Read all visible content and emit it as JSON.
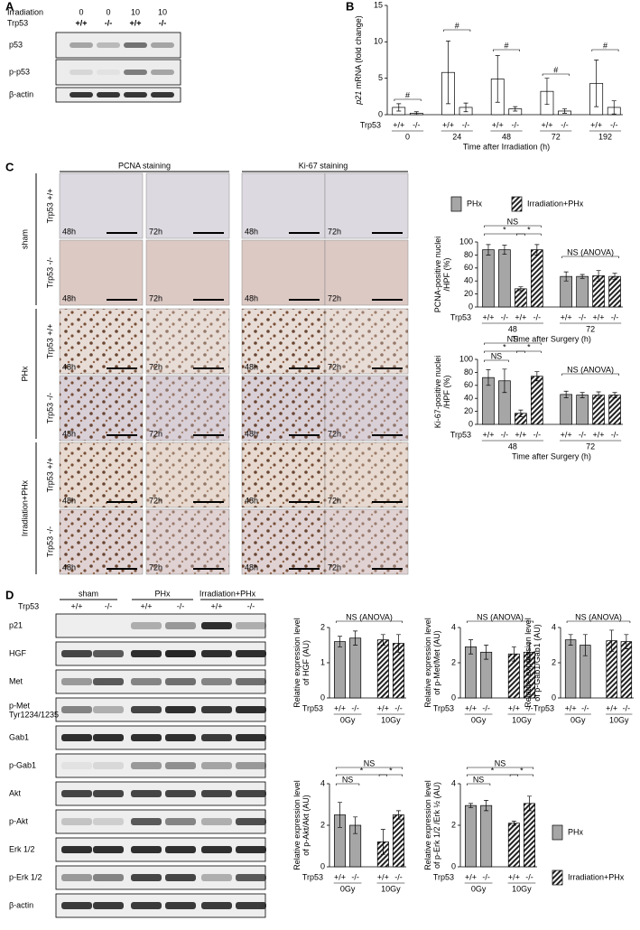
{
  "panel_labels": [
    "A",
    "B",
    "C",
    "D"
  ],
  "blot_a": {
    "header_labels": [
      "Irradiation",
      "Trp53"
    ],
    "irradiation": [
      "0",
      "0",
      "10",
      "10"
    ],
    "genotypes": [
      "+/+",
      "-/-",
      "+/+",
      "-/-"
    ],
    "rows": [
      "p53",
      "p-p53",
      "β-actin"
    ]
  },
  "micrographs": {
    "stains": [
      "PCNA staining",
      "Ki-67 staining"
    ],
    "groups": [
      "sham",
      "PHx",
      "Irradiation+PHx"
    ],
    "genotypes": [
      "Trp53 +/+",
      "Trp53 -/-"
    ],
    "times": [
      "48h",
      "72h"
    ]
  },
  "legend_c": {
    "items": [
      {
        "name": "PHx",
        "hatched": false
      },
      {
        "name": "Irradiation+PHx",
        "hatched": true
      }
    ]
  },
  "blot_d": {
    "row_label": "Trp53",
    "groups": [
      "sham",
      "PHx",
      "Irradiation+PHx"
    ],
    "genotypes": [
      "+/+",
      "-/-",
      "+/+",
      "-/-",
      "+/+",
      "-/-"
    ],
    "rows": [
      "p21",
      "HGF",
      "Met",
      "p-Met",
      "Gab1",
      "p-Gab1",
      "Akt",
      "p-Akt",
      "Erk 1/2",
      "p-Erk 1/2",
      "β-actin"
    ],
    "sublabel": "Tyr1234/1235"
  },
  "legend_d": {
    "items": [
      {
        "name": "PHx",
        "hatched": false
      },
      {
        "name": "Irradiation+PHx",
        "hatched": true
      }
    ]
  },
  "chart_data": [
    {
      "type": "bar",
      "y_label_italic": "p21",
      "y_label": [
        " mRNA (fold change)"
      ],
      "row_label": "Trp53",
      "categories": [
        "+/+",
        "-/-",
        "+/+",
        "-/-",
        "+/+",
        "-/-",
        "+/+",
        "-/-",
        "+/+",
        "-/-"
      ],
      "groups": [
        "0",
        "24",
        "48",
        "72",
        "192"
      ],
      "x_label": "Time after Irradiation (h)",
      "values": [
        1,
        0.2,
        5.8,
        1,
        4.9,
        0.8,
        3.2,
        0.5,
        4.3,
        1
      ],
      "errors": [
        0.5,
        0.2,
        4.3,
        0.6,
        3.2,
        0.3,
        1.8,
        0.3,
        3.2,
        0.9
      ],
      "color": "#ffffff",
      "ylim": [
        0,
        15
      ],
      "yticks": [
        0,
        5,
        10,
        15
      ],
      "annotations": [
        "#",
        "#",
        "#",
        "#",
        "#"
      ]
    },
    {
      "type": "bar",
      "y_label": [
        "PCNA-positive nuclei",
        "/HPF (%)"
      ],
      "row_label": "Trp53",
      "categories": [
        "+/+",
        "-/-",
        "+/+",
        "-/-",
        "+/+",
        "-/-",
        "+/+",
        "-/-"
      ],
      "groups": [
        "48",
        "72"
      ],
      "x_label": "Time after Surgery (h)",
      "values": [
        88,
        88,
        28,
        88,
        47,
        47,
        48,
        47
      ],
      "errors": [
        8,
        7,
        3,
        8,
        7,
        3,
        8,
        5
      ],
      "hatched": [
        false,
        false,
        true,
        true,
        false,
        false,
        true,
        true
      ],
      "color": "#a6a6a6",
      "ylim": [
        0,
        100
      ],
      "yticks": [
        0,
        20,
        40,
        60,
        80,
        100
      ],
      "annotations": [
        "NS",
        "*",
        "*",
        "NS (ANOVA)"
      ]
    },
    {
      "type": "bar",
      "y_label": [
        "Ki-67-positive nuclei",
        "/HPF (%)"
      ],
      "row_label": "Trp53",
      "categories": [
        "+/+",
        "-/-",
        "+/+",
        "-/-",
        "+/+",
        "-/-",
        "+/+",
        "-/-"
      ],
      "groups": [
        "48",
        "72"
      ],
      "x_label": "Time after Surgery (h)",
      "values": [
        72,
        67,
        17,
        74,
        46,
        45,
        45,
        45
      ],
      "errors": [
        12,
        18,
        5,
        7,
        5,
        4,
        5,
        4
      ],
      "hatched": [
        false,
        false,
        true,
        true,
        false,
        false,
        true,
        true
      ],
      "color": "#a6a6a6",
      "ylim": [
        0,
        100
      ],
      "yticks": [
        0,
        20,
        40,
        60,
        80,
        100
      ],
      "annotations": [
        "NS",
        "*",
        "*",
        "NS",
        "NS (ANOVA)"
      ]
    },
    {
      "type": "bar",
      "y_label": [
        "Relative expression level",
        "of HGF (AU)"
      ],
      "row_label": "Trp53",
      "categories": [
        "+/+",
        "-/-",
        "+/+",
        "-/-"
      ],
      "groups": [
        "0Gy",
        "10Gy"
      ],
      "values": [
        1.6,
        1.7,
        1.65,
        1.55
      ],
      "errors": [
        0.15,
        0.2,
        0.15,
        0.25
      ],
      "hatched": [
        false,
        false,
        true,
        true
      ],
      "color": "#a6a6a6",
      "ylim": [
        0,
        2
      ],
      "yticks": [
        0,
        1,
        2
      ],
      "annotations": [
        "NS (ANOVA)"
      ]
    },
    {
      "type": "bar",
      "y_label": [
        "Relative expression level",
        "of p-Met/Met (AU)"
      ],
      "row_label": "Trp53",
      "categories": [
        "+/+",
        "-/-",
        "+/+",
        "-/-"
      ],
      "groups": [
        "0Gy",
        "10Gy"
      ],
      "values": [
        2.9,
        2.6,
        2.5,
        2.6
      ],
      "errors": [
        0.4,
        0.4,
        0.4,
        0.5
      ],
      "hatched": [
        false,
        false,
        true,
        true
      ],
      "color": "#a6a6a6",
      "ylim": [
        0,
        4
      ],
      "yticks": [
        0,
        2,
        4
      ],
      "annotations": [
        "NS (ANOVA)"
      ]
    },
    {
      "type": "bar",
      "y_label": [
        "Relative expression level",
        "of p-Gab1/Gab1 (AU)"
      ],
      "row_label": "Trp53",
      "categories": [
        "+/+",
        "-/-",
        "+/+",
        "-/-"
      ],
      "groups": [
        "0Gy",
        "10Gy"
      ],
      "values": [
        3.3,
        3,
        3.25,
        3.2
      ],
      "errors": [
        0.3,
        0.6,
        0.6,
        0.4
      ],
      "hatched": [
        false,
        false,
        true,
        true
      ],
      "color": "#a6a6a6",
      "ylim": [
        0,
        4
      ],
      "yticks": [
        0,
        2,
        4
      ],
      "annotations": [
        "NS (ANOVA)"
      ]
    },
    {
      "type": "bar",
      "y_label": [
        "Relative expression level",
        "of p-Akt/Akt (AU)"
      ],
      "row_label": "Trp53",
      "categories": [
        "+/+",
        "-/-",
        "+/+",
        "-/-"
      ],
      "groups": [
        "0Gy",
        "10Gy"
      ],
      "values": [
        2.5,
        2,
        1.2,
        2.5
      ],
      "errors": [
        0.6,
        0.4,
        0.6,
        0.2
      ],
      "hatched": [
        false,
        false,
        true,
        true
      ],
      "color": "#a6a6a6",
      "ylim": [
        0,
        4
      ],
      "yticks": [
        0,
        2,
        4
      ],
      "annotations": [
        "NS",
        "NS",
        "*",
        "*"
      ]
    },
    {
      "type": "bar",
      "y_label": [
        "Relative expression level",
        "of p-Erk 1/2 /Erk ½ (AU)"
      ],
      "row_label": "Trp53",
      "categories": [
        "+/+",
        "-/-",
        "+/+",
        "-/-"
      ],
      "groups": [
        "0Gy",
        "10Gy"
      ],
      "values": [
        2.95,
        2.95,
        2.1,
        3.05
      ],
      "errors": [
        0.1,
        0.25,
        0.1,
        0.35
      ],
      "hatched": [
        false,
        false,
        true,
        true
      ],
      "color": "#a6a6a6",
      "ylim": [
        0,
        4
      ],
      "yticks": [
        0,
        2,
        4
      ],
      "annotations": [
        "NS",
        "NS",
        "*",
        "*"
      ]
    }
  ]
}
